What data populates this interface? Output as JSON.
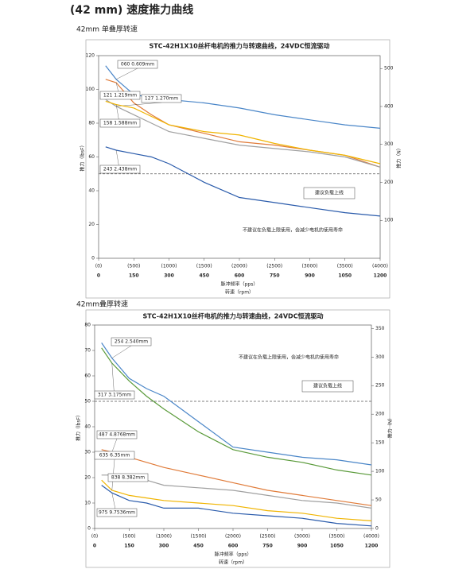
{
  "heading": "(42 mm) 速度推力曲线",
  "chart_data": [
    {
      "type": "line",
      "caption": "42mm 单叠厚转速",
      "title": "STC-42H1X10丝杆电机的推力与转速曲线，24VDC恒流驱动",
      "x_label": "脉冲频率（pps）",
      "x2_label": "转速（rpm）",
      "y_label": "推力（lbsF）",
      "y2_label": "推力（N）",
      "x": [
        100,
        250,
        500,
        750,
        1000,
        1500,
        2000,
        2500,
        3000,
        3500,
        4000
      ],
      "xlim": [
        0,
        4000
      ],
      "xticks": [
        {
          "value": 0,
          "label": "(0)"
        },
        {
          "value": 500,
          "label": "(500)"
        },
        {
          "value": 1000,
          "label": "(1000)"
        },
        {
          "value": 1500,
          "label": "(1500)"
        },
        {
          "value": 2000,
          "label": "(2000)"
        },
        {
          "value": 2500,
          "label": "(2500)"
        },
        {
          "value": 3000,
          "label": "(3000)"
        },
        {
          "value": 3500,
          "label": "(3500)"
        },
        {
          "value": 4000,
          "label": "(4000)"
        }
      ],
      "x2lim": [
        0,
        1200
      ],
      "x2ticks": [
        0,
        150,
        300,
        450,
        600,
        750,
        900,
        1050,
        1200
      ],
      "ylim": [
        0,
        120
      ],
      "yticks": [
        0,
        20,
        40,
        60,
        80,
        100,
        120
      ],
      "y2lim": [
        0,
        534
      ],
      "y2ticks": [
        100,
        200,
        300,
        400,
        500
      ],
      "series": [
        {
          "name": "060 0.609mm",
          "color": "#4a86c8",
          "values": [
            114,
            106,
            97,
            95,
            94,
            92,
            89,
            85,
            82,
            79,
            77
          ]
        },
        {
          "name": "121 1.219mm",
          "color": "#e07b39",
          "values": [
            106,
            104,
            92,
            85,
            79,
            74,
            69,
            67,
            64,
            61,
            54
          ]
        },
        {
          "name": "127 1.270mm",
          "color": "#a0a0a0",
          "values": [
            94,
            90,
            85,
            80,
            75,
            71,
            67,
            65,
            63,
            60,
            54
          ]
        },
        {
          "name": "158 1.588mm",
          "color": "#f0b400",
          "values": [
            93,
            91,
            89,
            84,
            79,
            75,
            73,
            68,
            64,
            61,
            56
          ]
        },
        {
          "name": "243 2.438mm",
          "color": "#2a5bab",
          "values": [
            66,
            64,
            62,
            60,
            56,
            45,
            36,
            33,
            30,
            27,
            25
          ]
        }
      ],
      "reference_line": {
        "value": 50,
        "label": "建议负载上线"
      },
      "note": "不建议在负载上限使用，会减少电机的使用寿命"
    },
    {
      "type": "line",
      "caption": "42mm叠厚转速",
      "title": "STC-42H1X10丝杆电机的推力与转速曲线，24VDC恒流驱动",
      "x_label": "脉冲频率（pps）",
      "x2_label": "转速（rpm）",
      "y_label": "推力（lbsF）",
      "y2_label": "推力（N）",
      "x": [
        100,
        250,
        500,
        750,
        1000,
        1500,
        2000,
        2500,
        3000,
        3500,
        4000
      ],
      "xlim": [
        0,
        4000
      ],
      "xticks": [
        {
          "value": 0,
          "label": "(0)"
        },
        {
          "value": 500,
          "label": "(500)"
        },
        {
          "value": 1000,
          "label": "(1000)"
        },
        {
          "value": 1500,
          "label": "(1500)"
        },
        {
          "value": 2000,
          "label": "(2000)"
        },
        {
          "value": 2500,
          "label": "(2500)"
        },
        {
          "value": 3000,
          "label": "(3000)"
        },
        {
          "value": 3500,
          "label": "(3500)"
        },
        {
          "value": 4000,
          "label": "(4000)"
        }
      ],
      "x2lim": [
        0,
        1200
      ],
      "x2ticks": [
        0,
        150,
        300,
        450,
        600,
        750,
        900,
        1050,
        1200
      ],
      "ylim": [
        0,
        80
      ],
      "yticks": [
        0,
        10,
        20,
        30,
        40,
        50,
        60,
        70,
        80
      ],
      "y2lim": [
        0,
        356
      ],
      "y2ticks": [
        0,
        50,
        100,
        150,
        200,
        250,
        300,
        350
      ],
      "series": [
        {
          "name": "254 2.540mm",
          "color": "#4a86c8",
          "values": [
            73,
            67,
            59,
            55,
            52,
            42,
            32,
            30,
            28,
            27,
            25
          ]
        },
        {
          "name": "317 3.175mm",
          "color": "#5a9a3a",
          "values": [
            71,
            65,
            58,
            52,
            47,
            38,
            31,
            28,
            26,
            23,
            21
          ]
        },
        {
          "name": "487 4.8768mm",
          "color": "#e07b39",
          "values": [
            31,
            30,
            28,
            26,
            24,
            21,
            18,
            15,
            13,
            11,
            9
          ]
        },
        {
          "name": "635 6.35mm",
          "color": "#f0b400",
          "values": [
            19,
            15,
            13,
            12,
            11,
            10,
            9,
            7,
            6,
            4,
            3
          ]
        },
        {
          "name": "838 8.382mm",
          "color": "#a0a0a0",
          "values": [
            21,
            21,
            20,
            19,
            17,
            16,
            15,
            13,
            11,
            10,
            8
          ]
        },
        {
          "name": "975 9.7536mm",
          "color": "#2a5bab",
          "values": [
            17,
            14,
            11,
            10,
            8,
            8,
            6,
            5,
            4,
            2,
            1
          ]
        }
      ],
      "reference_line": {
        "value": 50,
        "label": "建议负载上线"
      },
      "note": "不建议在负载上限使用，会减少电机的使用寿命"
    }
  ]
}
